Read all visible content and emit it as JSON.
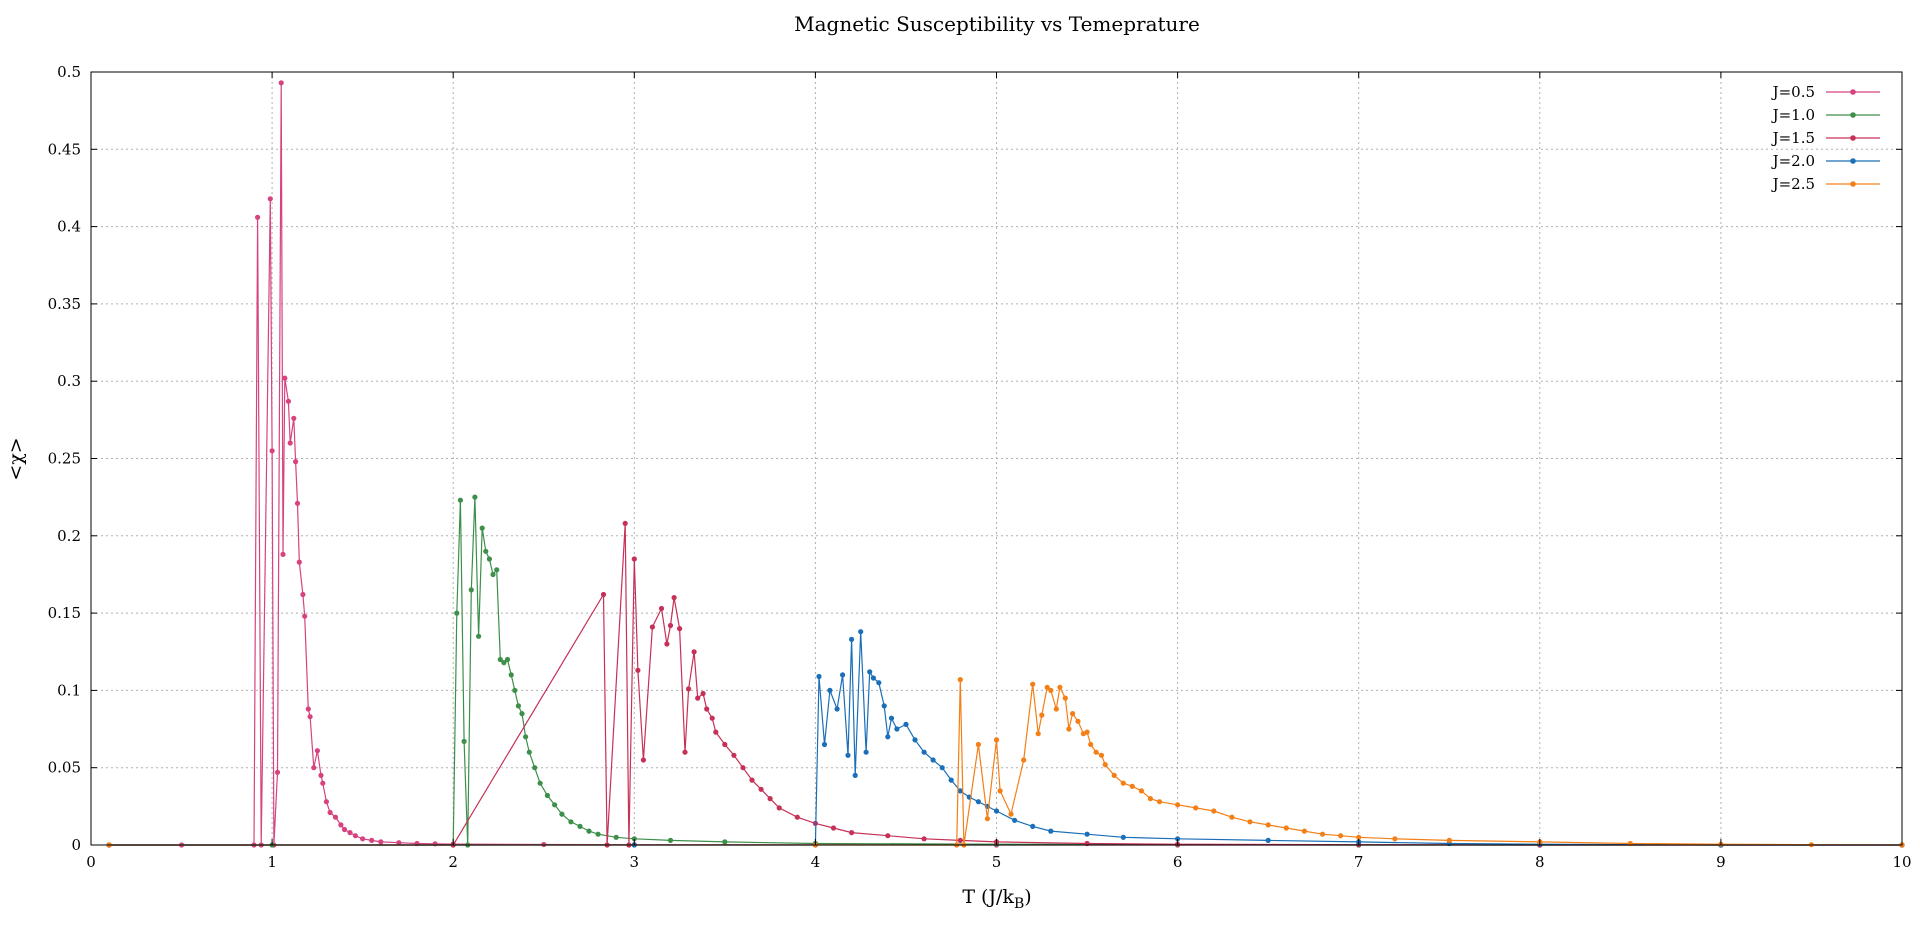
{
  "chart_data": {
    "type": "line",
    "title": "Magnetic Susceptibility vs Temeprature",
    "xlabel": "T (J/k",
    "xlabel_sub": "B",
    "xlabel_close": ")",
    "ylabel": "<χ>",
    "xlim": [
      0,
      10
    ],
    "ylim": [
      0,
      0.5
    ],
    "x_ticks": [
      "0",
      "1",
      "2",
      "3",
      "4",
      "5",
      "6",
      "7",
      "8",
      "9",
      "10"
    ],
    "y_ticks": [
      "0",
      "0.05",
      "0.1",
      "0.15",
      "0.2",
      "0.25",
      "0.3",
      "0.35",
      "0.4",
      "0.45",
      "0.5"
    ],
    "grid": true,
    "legend_position": "top-right",
    "series": [
      {
        "name": "J=0.5",
        "color": "#d6437f",
        "x": [
          0.1,
          0.5,
          0.9,
          0.92,
          0.94,
          0.99,
          1.0,
          1.01,
          1.03,
          1.05,
          1.06,
          1.07,
          1.09,
          1.1,
          1.12,
          1.13,
          1.14,
          1.15,
          1.17,
          1.18,
          1.2,
          1.21,
          1.23,
          1.25,
          1.27,
          1.28,
          1.3,
          1.32,
          1.35,
          1.38,
          1.4,
          1.43,
          1.46,
          1.5,
          1.55,
          1.6,
          1.7,
          1.8,
          1.9,
          2.0,
          2.5,
          3.0,
          4.0,
          5.0,
          6.0,
          7.0,
          8.0,
          9.0,
          10.0
        ],
        "y": [
          0,
          0,
          0,
          0.406,
          0,
          0.418,
          0.255,
          0,
          0.047,
          0.493,
          0.188,
          0.302,
          0.287,
          0.26,
          0.276,
          0.248,
          0.221,
          0.183,
          0.162,
          0.148,
          0.088,
          0.083,
          0.05,
          0.061,
          0.045,
          0.04,
          0.028,
          0.021,
          0.018,
          0.013,
          0.01,
          0.008,
          0.006,
          0.004,
          0.003,
          0.002,
          0.0015,
          0.001,
          0.0008,
          0.0006,
          0.0003,
          0.0002,
          0.0001,
          0,
          0,
          0,
          0,
          0,
          0
        ]
      },
      {
        "name": "J=1.0",
        "color": "#3d8f4a",
        "x": [
          0.1,
          1.0,
          2.0,
          2.02,
          2.04,
          2.06,
          2.08,
          2.1,
          2.12,
          2.14,
          2.16,
          2.18,
          2.2,
          2.22,
          2.24,
          2.26,
          2.28,
          2.3,
          2.32,
          2.34,
          2.36,
          2.38,
          2.4,
          2.42,
          2.45,
          2.48,
          2.52,
          2.56,
          2.6,
          2.65,
          2.7,
          2.75,
          2.8,
          2.9,
          3.0,
          3.2,
          3.5,
          4.0,
          5.0,
          6.0,
          7.0,
          8.0,
          9.0,
          10.0
        ],
        "y": [
          0,
          0,
          0,
          0.15,
          0.223,
          0.067,
          0,
          0.165,
          0.225,
          0.135,
          0.205,
          0.19,
          0.185,
          0.175,
          0.178,
          0.12,
          0.118,
          0.12,
          0.11,
          0.1,
          0.09,
          0.085,
          0.07,
          0.06,
          0.05,
          0.04,
          0.032,
          0.026,
          0.02,
          0.015,
          0.012,
          0.009,
          0.007,
          0.005,
          0.004,
          0.003,
          0.002,
          0.001,
          0.0005,
          0.0002,
          0,
          0,
          0,
          0
        ]
      },
      {
        "name": "J=1.5",
        "color": "#c63157",
        "x": [
          0.1,
          2.0,
          2.83,
          2.85,
          2.95,
          2.97,
          3.0,
          3.02,
          3.05,
          3.1,
          3.15,
          3.18,
          3.2,
          3.22,
          3.25,
          3.28,
          3.3,
          3.33,
          3.35,
          3.38,
          3.4,
          3.43,
          3.45,
          3.5,
          3.55,
          3.6,
          3.65,
          3.7,
          3.75,
          3.8,
          3.9,
          4.0,
          4.1,
          4.2,
          4.4,
          4.6,
          4.8,
          5.0,
          5.5,
          6.0,
          7.0,
          8.0,
          9.0,
          10.0
        ],
        "y": [
          0,
          0,
          0.162,
          0,
          0.208,
          0,
          0.185,
          0.113,
          0.055,
          0.141,
          0.153,
          0.13,
          0.142,
          0.16,
          0.14,
          0.06,
          0.101,
          0.125,
          0.095,
          0.098,
          0.088,
          0.082,
          0.073,
          0.065,
          0.058,
          0.05,
          0.042,
          0.036,
          0.03,
          0.024,
          0.018,
          0.014,
          0.011,
          0.008,
          0.006,
          0.004,
          0.003,
          0.002,
          0.001,
          0.0005,
          0.0002,
          0,
          0,
          0
        ]
      },
      {
        "name": "J=2.0",
        "color": "#1a6fb8",
        "x": [
          0.1,
          3.0,
          4.0,
          4.02,
          4.05,
          4.08,
          4.12,
          4.15,
          4.18,
          4.2,
          4.22,
          4.25,
          4.28,
          4.3,
          4.32,
          4.35,
          4.38,
          4.4,
          4.42,
          4.45,
          4.5,
          4.55,
          4.6,
          4.65,
          4.7,
          4.75,
          4.8,
          4.85,
          4.9,
          4.95,
          5.0,
          5.1,
          5.2,
          5.3,
          5.5,
          5.7,
          6.0,
          6.5,
          7.0,
          7.5,
          8.0,
          9.0,
          10.0
        ],
        "y": [
          0,
          0,
          0,
          0.109,
          0.065,
          0.1,
          0.088,
          0.11,
          0.058,
          0.133,
          0.045,
          0.138,
          0.06,
          0.112,
          0.108,
          0.105,
          0.09,
          0.07,
          0.082,
          0.075,
          0.078,
          0.068,
          0.06,
          0.055,
          0.05,
          0.042,
          0.035,
          0.031,
          0.028,
          0.025,
          0.022,
          0.016,
          0.012,
          0.009,
          0.007,
          0.005,
          0.004,
          0.003,
          0.002,
          0.001,
          0.0005,
          0,
          0
        ]
      },
      {
        "name": "J=2.5",
        "color": "#f47f17",
        "x": [
          0.1,
          4.0,
          4.78,
          4.8,
          4.82,
          4.9,
          4.95,
          5.0,
          5.02,
          5.08,
          5.15,
          5.2,
          5.23,
          5.25,
          5.28,
          5.3,
          5.33,
          5.35,
          5.38,
          5.4,
          5.42,
          5.45,
          5.48,
          5.5,
          5.52,
          5.55,
          5.58,
          5.6,
          5.65,
          5.7,
          5.75,
          5.8,
          5.85,
          5.9,
          6.0,
          6.1,
          6.2,
          6.3,
          6.4,
          6.5,
          6.6,
          6.7,
          6.8,
          6.9,
          7.0,
          7.2,
          7.5,
          8.0,
          8.5,
          9.0,
          9.5,
          10.0
        ],
        "y": [
          0,
          0,
          0,
          0.107,
          0,
          0.065,
          0.017,
          0.068,
          0.035,
          0.02,
          0.055,
          0.104,
          0.072,
          0.084,
          0.102,
          0.1,
          0.088,
          0.102,
          0.095,
          0.075,
          0.085,
          0.08,
          0.072,
          0.073,
          0.065,
          0.06,
          0.058,
          0.052,
          0.045,
          0.04,
          0.038,
          0.035,
          0.03,
          0.028,
          0.026,
          0.024,
          0.022,
          0.018,
          0.015,
          0.013,
          0.011,
          0.009,
          0.007,
          0.006,
          0.005,
          0.004,
          0.003,
          0.002,
          0.001,
          0.0005,
          0.0002,
          0
        ]
      }
    ]
  }
}
